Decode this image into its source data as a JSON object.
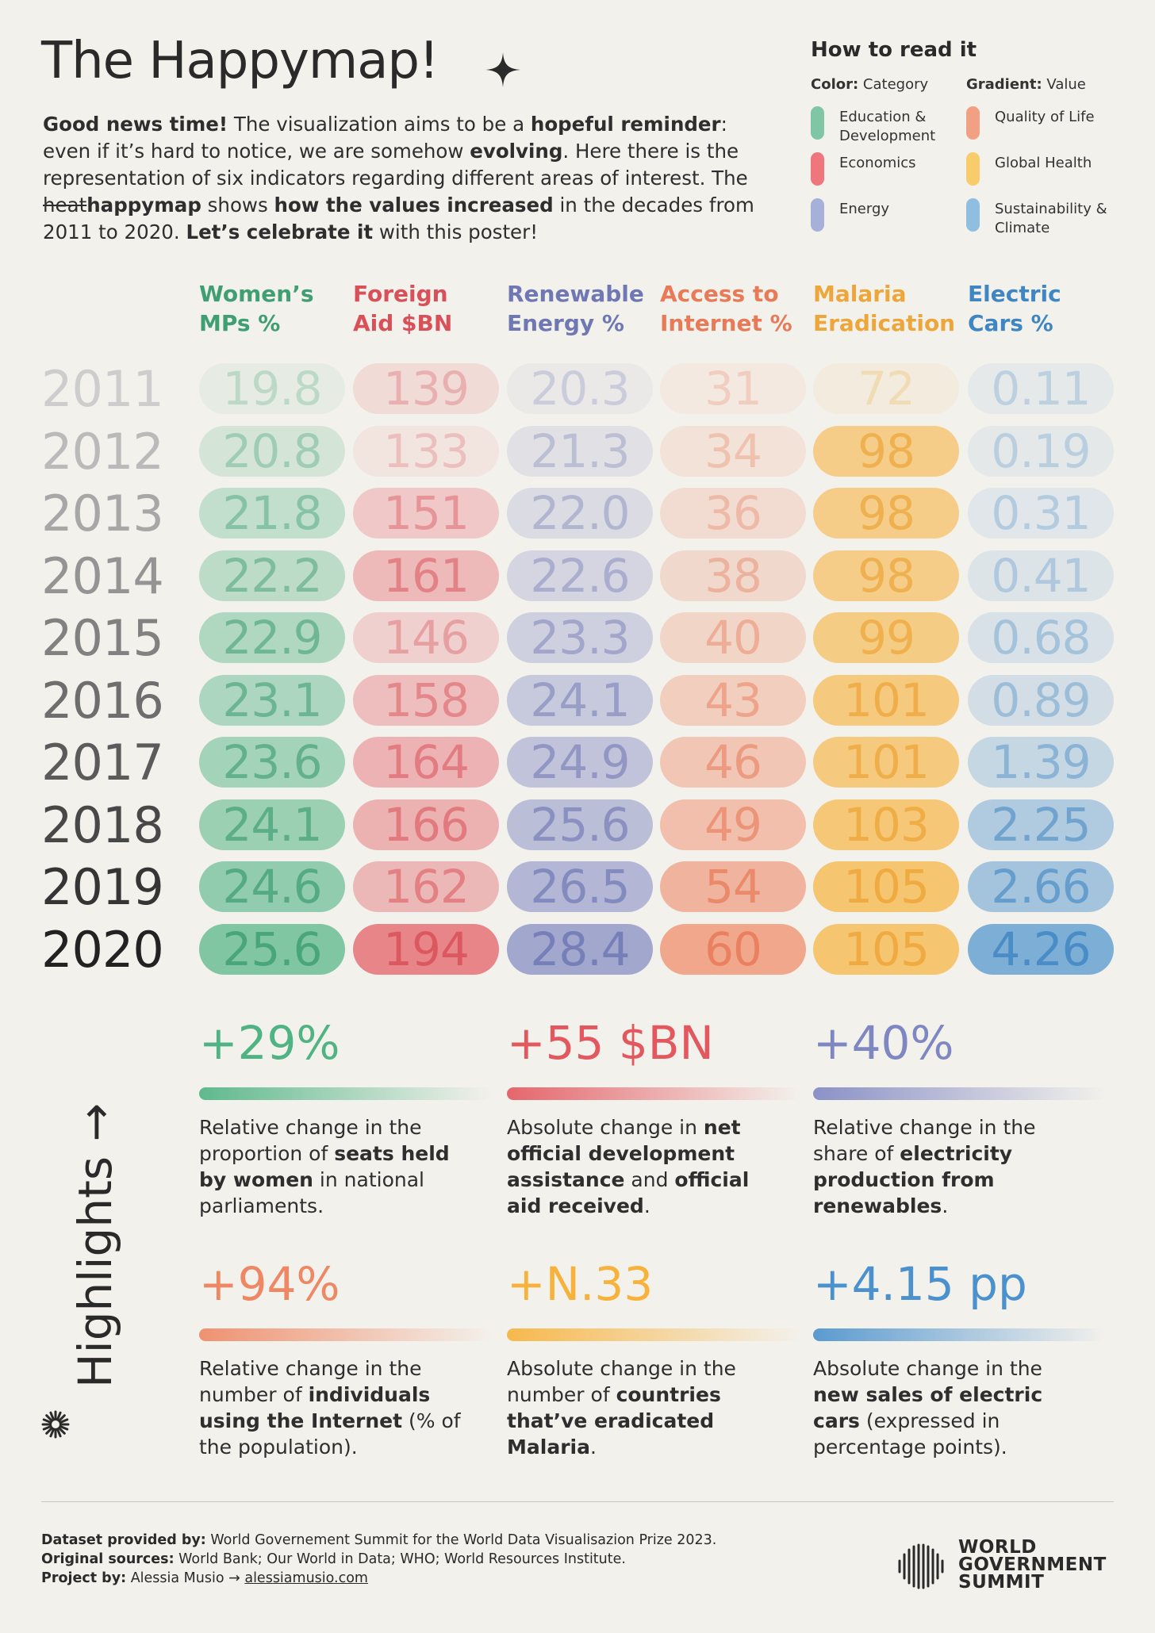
{
  "title": "The Happymap!",
  "intro": {
    "p1_b": "Good news time!",
    "p2": " The visualization aims to be a ",
    "p3_b": "hopeful reminder",
    "p4": ": even if it’s hard to notice, we are somehow ",
    "p5_b": "evolving",
    "p6": ". Here there is the representation of six indicators regarding different areas of interest. The ",
    "p7_strike": "heat",
    "p8_b": "happymap",
    "p9": " shows ",
    "p10_b": "how the values increased",
    "p11": " in the decades from 2011 to 2020. ",
    "p12_b": "Let’s celebrate it",
    "p13": " with this poster!"
  },
  "legend": {
    "title": "How to read it",
    "color_b": "Color:",
    "color_t": " Category",
    "gradient_b": "Gradient:",
    "gradient_t": " Value",
    "items": [
      {
        "label": "Education & Development",
        "color": "#7fc6a4"
      },
      {
        "label": "Economics",
        "color": "#ee767c"
      },
      {
        "label": "Energy",
        "color": "#a7b0d8"
      },
      {
        "label": "Quality of Life",
        "color": "#f2a083"
      },
      {
        "label": "Global Health",
        "color": "#f8cc6a"
      },
      {
        "label": "Sustainability & Climate",
        "color": "#8fbfe0"
      }
    ]
  },
  "columns": [
    {
      "header1": "Women’s",
      "header2": "MPs %",
      "color": "#4fb383",
      "text": "#3f9f73"
    },
    {
      "header1": "Foreign",
      "header2": "Aid $BN",
      "color": "#e3575f",
      "text": "#d95059"
    },
    {
      "header1": "Renewable",
      "header2": "Energy %",
      "color": "#7f87c2",
      "text": "#6f78b3"
    },
    {
      "header1": "Access to",
      "header2": "Internet %",
      "color": "#ee8763",
      "text": "#e87a58"
    },
    {
      "header1": "Malaria",
      "header2": "Eradication",
      "color": "#f7b23b",
      "text": "#eda63a"
    },
    {
      "header1": "Electric",
      "header2": "Cars %",
      "color": "#4a91cd",
      "text": "#3f86c3"
    }
  ],
  "years": [
    "2011",
    "2012",
    "2013",
    "2014",
    "2015",
    "2016",
    "2017",
    "2018",
    "2019",
    "2020"
  ],
  "values": [
    [
      "19.8",
      "139",
      "20.3",
      "31",
      "72",
      "0.11"
    ],
    [
      "20.8",
      "133",
      "21.3",
      "34",
      "98",
      "0.19"
    ],
    [
      "21.8",
      "151",
      "22.0",
      "36",
      "98",
      "0.31"
    ],
    [
      "22.2",
      "161",
      "22.6",
      "38",
      "98",
      "0.41"
    ],
    [
      "22.9",
      "146",
      "23.3",
      "40",
      "99",
      "0.68"
    ],
    [
      "23.1",
      "158",
      "24.1",
      "43",
      "101",
      "0.89"
    ],
    [
      "23.6",
      "164",
      "24.9",
      "46",
      "101",
      "1.39"
    ],
    [
      "24.1",
      "166",
      "25.6",
      "49",
      "103",
      "2.25"
    ],
    [
      "24.6",
      "162",
      "26.5",
      "54",
      "105",
      "2.66"
    ],
    [
      "25.6",
      "194",
      "28.4",
      "60",
      "105",
      "4.26"
    ]
  ],
  "highlights_title": "Highlights →",
  "highlights": [
    {
      "value": "+29%",
      "parts": [
        "Relative change in the proportion of ",
        "seats held by women",
        " in national parliaments."
      ]
    },
    {
      "value": "+55 $BN",
      "parts": [
        "Absolute change in ",
        "net official development assistance",
        " and ",
        "official aid received",
        "."
      ]
    },
    {
      "value": "+40%",
      "parts": [
        "Relative change in the share of ",
        "electricity production from renewables",
        "."
      ]
    },
    {
      "value": "+94%",
      "parts": [
        "Relative change in the number of ",
        "individuals using the Internet",
        " (% of the population)."
      ]
    },
    {
      "value": "+N.33",
      "parts": [
        "Absolute change in the number of ",
        "countries that’ve eradicated Malaria",
        "."
      ]
    },
    {
      "value": "+4.15 pp",
      "parts": [
        "Absolute change in the ",
        "new sales of electric cars",
        " (expressed in percentage points)."
      ]
    }
  ],
  "footer": {
    "l1_b": "Dataset provided by:",
    "l1": " World Governement Summit for the World Data Visualisazion Prize 2023.",
    "l2_b": "Original sources:",
    "l2": " World Bank; Our World in Data; WHO; World Resources Institute.",
    "l3_b": "Project by:",
    "l3": " Alessia Musio → ",
    "l3_link": "alessiamusio.com"
  },
  "logo": {
    "line1": "WORLD",
    "line2": "GOVERNMENT",
    "line3": "SUMMIT"
  }
}
